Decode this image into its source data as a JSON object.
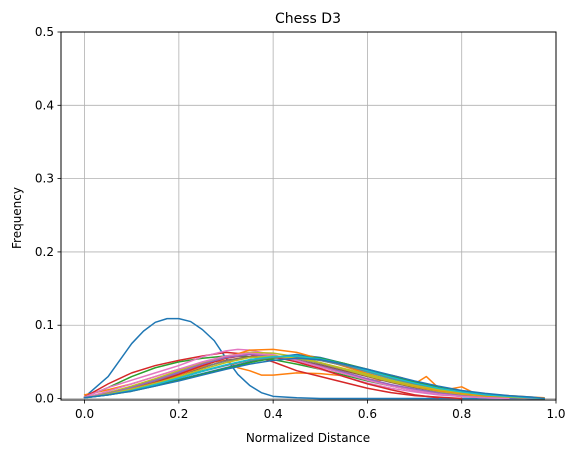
{
  "chart_data": {
    "type": "line",
    "title": "Chess D3",
    "xlabel": "Normalized Distance",
    "ylabel": "Frequency",
    "xlim": [
      -0.05,
      1.0
    ],
    "ylim": [
      -0.002,
      0.5
    ],
    "xticks": [
      0.0,
      0.2,
      0.4,
      0.6,
      0.8,
      1.0
    ],
    "xtick_labels": [
      "0.0",
      "0.2",
      "0.4",
      "0.6",
      "0.8",
      "1.0"
    ],
    "yticks": [
      0.0,
      0.1,
      0.2,
      0.3,
      0.4,
      0.5
    ],
    "ytick_labels": [
      "0.0",
      "0.1",
      "0.2",
      "0.3",
      "0.4",
      "0.5"
    ],
    "grid": true,
    "legend": "none",
    "series": [
      {
        "color": "#1f77b4",
        "x": [
          0.0,
          0.05,
          0.1,
          0.125,
          0.15,
          0.175,
          0.2,
          0.225,
          0.25,
          0.275,
          0.3,
          0.325,
          0.35,
          0.375,
          0.4,
          0.45,
          0.5,
          0.6,
          0.7,
          0.8,
          0.9,
          0.975
        ],
        "y": [
          0.002,
          0.03,
          0.075,
          0.092,
          0.104,
          0.109,
          0.109,
          0.105,
          0.094,
          0.079,
          0.055,
          0.033,
          0.018,
          0.008,
          0.003,
          0.001,
          0.0,
          0.0,
          0.0,
          0.0,
          0.0,
          0.0
        ]
      },
      {
        "color": "#ff7f0e",
        "x": [
          0.0,
          0.05,
          0.1,
          0.15,
          0.2,
          0.25,
          0.3,
          0.325,
          0.35,
          0.375,
          0.4,
          0.45,
          0.5,
          0.55,
          0.6,
          0.625,
          0.65,
          0.675,
          0.7,
          0.725,
          0.75,
          0.775,
          0.8,
          0.825,
          0.85,
          0.9,
          0.95,
          0.975
        ],
        "y": [
          0.005,
          0.012,
          0.02,
          0.03,
          0.04,
          0.048,
          0.052,
          0.042,
          0.038,
          0.032,
          0.032,
          0.035,
          0.034,
          0.031,
          0.027,
          0.024,
          0.032,
          0.028,
          0.02,
          0.03,
          0.015,
          0.013,
          0.016,
          0.008,
          0.006,
          0.004,
          0.002,
          0.001
        ]
      },
      {
        "color": "#2ca02c",
        "x": [
          0.0,
          0.05,
          0.1,
          0.15,
          0.2,
          0.25,
          0.3,
          0.35,
          0.4,
          0.45,
          0.5,
          0.55,
          0.6,
          0.65,
          0.7,
          0.75,
          0.8,
          0.85,
          0.9,
          0.95,
          0.975
        ],
        "y": [
          0.002,
          0.015,
          0.03,
          0.042,
          0.05,
          0.055,
          0.058,
          0.057,
          0.053,
          0.047,
          0.04,
          0.032,
          0.024,
          0.017,
          0.011,
          0.007,
          0.004,
          0.002,
          0.001,
          0.0,
          0.0
        ]
      },
      {
        "color": "#d62728",
        "x": [
          0.0,
          0.05,
          0.1,
          0.15,
          0.2,
          0.25,
          0.3,
          0.35,
          0.4,
          0.45,
          0.5,
          0.55,
          0.6,
          0.65,
          0.7,
          0.75,
          0.8
        ],
        "y": [
          0.002,
          0.02,
          0.035,
          0.045,
          0.052,
          0.058,
          0.063,
          0.06,
          0.05,
          0.038,
          0.03,
          0.022,
          0.014,
          0.008,
          0.004,
          0.002,
          0.0
        ]
      },
      {
        "color": "#9467bd",
        "x": [
          0.0,
          0.05,
          0.1,
          0.15,
          0.2,
          0.25,
          0.3,
          0.35,
          0.4,
          0.45,
          0.5,
          0.55,
          0.6,
          0.65,
          0.7,
          0.75,
          0.8,
          0.85,
          0.9,
          0.95,
          0.975
        ],
        "y": [
          0.001,
          0.008,
          0.016,
          0.025,
          0.035,
          0.045,
          0.055,
          0.06,
          0.058,
          0.052,
          0.044,
          0.036,
          0.027,
          0.019,
          0.013,
          0.008,
          0.005,
          0.003,
          0.001,
          0.0,
          0.0
        ]
      },
      {
        "color": "#8c564b",
        "x": [
          0.0,
          0.05,
          0.1,
          0.15,
          0.2,
          0.25,
          0.3,
          0.35,
          0.4,
          0.45,
          0.5,
          0.55,
          0.6,
          0.65,
          0.7,
          0.75,
          0.8,
          0.85,
          0.9,
          0.95,
          0.975
        ],
        "y": [
          0.001,
          0.006,
          0.013,
          0.022,
          0.032,
          0.042,
          0.052,
          0.057,
          0.056,
          0.052,
          0.046,
          0.038,
          0.03,
          0.022,
          0.015,
          0.01,
          0.006,
          0.003,
          0.002,
          0.001,
          0.0
        ]
      },
      {
        "color": "#e377c2",
        "x": [
          0.0,
          0.05,
          0.1,
          0.15,
          0.2,
          0.25,
          0.3,
          0.325,
          0.35,
          0.4,
          0.45,
          0.5,
          0.55,
          0.6,
          0.65,
          0.7,
          0.75,
          0.8,
          0.85,
          0.9
        ],
        "y": [
          0.002,
          0.015,
          0.025,
          0.035,
          0.045,
          0.057,
          0.065,
          0.067,
          0.066,
          0.06,
          0.05,
          0.04,
          0.03,
          0.021,
          0.014,
          0.009,
          0.005,
          0.003,
          0.001,
          0.0
        ]
      },
      {
        "color": "#7f7f7f",
        "x": [
          0.0,
          0.05,
          0.1,
          0.15,
          0.2,
          0.25,
          0.3,
          0.35,
          0.4,
          0.45,
          0.5,
          0.55,
          0.6,
          0.65,
          0.7,
          0.75,
          0.8,
          0.85,
          0.9,
          0.95,
          0.975
        ],
        "y": [
          0.001,
          0.007,
          0.015,
          0.024,
          0.033,
          0.043,
          0.051,
          0.056,
          0.057,
          0.054,
          0.048,
          0.04,
          0.032,
          0.024,
          0.017,
          0.011,
          0.007,
          0.004,
          0.002,
          0.001,
          0.0
        ]
      },
      {
        "color": "#bcbd22",
        "x": [
          0.0,
          0.05,
          0.1,
          0.15,
          0.2,
          0.25,
          0.3,
          0.35,
          0.4,
          0.45,
          0.5,
          0.55,
          0.6,
          0.65,
          0.7,
          0.75,
          0.8,
          0.85,
          0.9,
          0.95,
          0.975
        ],
        "y": [
          0.001,
          0.008,
          0.017,
          0.027,
          0.038,
          0.049,
          0.058,
          0.063,
          0.062,
          0.057,
          0.049,
          0.04,
          0.031,
          0.023,
          0.016,
          0.01,
          0.006,
          0.003,
          0.002,
          0.001,
          0.0
        ]
      },
      {
        "color": "#17becf",
        "x": [
          0.0,
          0.05,
          0.1,
          0.15,
          0.2,
          0.25,
          0.3,
          0.35,
          0.4,
          0.45,
          0.5,
          0.55,
          0.6,
          0.65,
          0.7,
          0.75,
          0.8,
          0.85,
          0.9,
          0.95,
          0.975
        ],
        "y": [
          0.001,
          0.006,
          0.012,
          0.02,
          0.029,
          0.038,
          0.046,
          0.053,
          0.057,
          0.057,
          0.052,
          0.045,
          0.036,
          0.027,
          0.019,
          0.013,
          0.008,
          0.005,
          0.003,
          0.001,
          0.0
        ]
      },
      {
        "color": "#1f77b4",
        "x": [
          0.0,
          0.05,
          0.1,
          0.15,
          0.2,
          0.25,
          0.3,
          0.35,
          0.4,
          0.45,
          0.5,
          0.55,
          0.6,
          0.65,
          0.7,
          0.75,
          0.8,
          0.85,
          0.9,
          0.95,
          0.975
        ],
        "y": [
          0.001,
          0.005,
          0.011,
          0.018,
          0.026,
          0.034,
          0.042,
          0.05,
          0.056,
          0.06,
          0.056,
          0.048,
          0.039,
          0.03,
          0.022,
          0.015,
          0.009,
          0.006,
          0.003,
          0.001,
          0.0
        ]
      },
      {
        "color": "#ff7f0e",
        "x": [
          0.0,
          0.05,
          0.1,
          0.15,
          0.2,
          0.25,
          0.3,
          0.35,
          0.4,
          0.45,
          0.5,
          0.55,
          0.6,
          0.65,
          0.7,
          0.75,
          0.8,
          0.85,
          0.9,
          0.95,
          0.975
        ],
        "y": [
          0.001,
          0.006,
          0.013,
          0.022,
          0.032,
          0.044,
          0.056,
          0.066,
          0.067,
          0.063,
          0.054,
          0.044,
          0.034,
          0.025,
          0.017,
          0.011,
          0.007,
          0.004,
          0.002,
          0.001,
          0.0
        ]
      },
      {
        "color": "#2ca02c",
        "x": [
          0.0,
          0.05,
          0.1,
          0.15,
          0.2,
          0.25,
          0.3,
          0.35,
          0.4,
          0.45,
          0.5,
          0.55,
          0.6,
          0.65,
          0.7,
          0.75,
          0.8,
          0.85,
          0.9,
          0.95,
          0.975
        ],
        "y": [
          0.001,
          0.005,
          0.01,
          0.017,
          0.025,
          0.033,
          0.041,
          0.049,
          0.055,
          0.058,
          0.055,
          0.048,
          0.04,
          0.031,
          0.023,
          0.016,
          0.01,
          0.006,
          0.003,
          0.001,
          0.0
        ]
      },
      {
        "color": "#d62728",
        "x": [
          0.0,
          0.05,
          0.1,
          0.15,
          0.2,
          0.25,
          0.3,
          0.35,
          0.4,
          0.45,
          0.5,
          0.55,
          0.6,
          0.65,
          0.7,
          0.75
        ],
        "y": [
          0.001,
          0.006,
          0.013,
          0.022,
          0.033,
          0.045,
          0.055,
          0.06,
          0.057,
          0.05,
          0.041,
          0.03,
          0.02,
          0.012,
          0.005,
          0.001
        ]
      },
      {
        "color": "#9467bd",
        "x": [
          0.0,
          0.05,
          0.1,
          0.15,
          0.2,
          0.25,
          0.3,
          0.35,
          0.4,
          0.45,
          0.5,
          0.55,
          0.6,
          0.65,
          0.7,
          0.75,
          0.8,
          0.85,
          0.9
        ],
        "y": [
          0.001,
          0.007,
          0.015,
          0.025,
          0.036,
          0.047,
          0.056,
          0.06,
          0.058,
          0.052,
          0.044,
          0.035,
          0.026,
          0.018,
          0.011,
          0.006,
          0.003,
          0.001,
          0.0
        ]
      },
      {
        "color": "#e377c2",
        "x": [
          0.0,
          0.05,
          0.1,
          0.15,
          0.2,
          0.25,
          0.3,
          0.35,
          0.4,
          0.45,
          0.5,
          0.55,
          0.6,
          0.65,
          0.7,
          0.75,
          0.8,
          0.85,
          0.9
        ],
        "y": [
          0.001,
          0.01,
          0.02,
          0.03,
          0.04,
          0.05,
          0.058,
          0.062,
          0.059,
          0.052,
          0.043,
          0.034,
          0.025,
          0.017,
          0.011,
          0.006,
          0.003,
          0.001,
          0.0
        ]
      },
      {
        "color": "#7f7f7f",
        "x": [
          0.0,
          0.05,
          0.1,
          0.15,
          0.2,
          0.25,
          0.3,
          0.35,
          0.4,
          0.45,
          0.5,
          0.55,
          0.6,
          0.65,
          0.7,
          0.75,
          0.8,
          0.85,
          0.9,
          0.95,
          0.975
        ],
        "y": [
          0.001,
          0.006,
          0.012,
          0.02,
          0.028,
          0.037,
          0.045,
          0.052,
          0.056,
          0.056,
          0.052,
          0.045,
          0.037,
          0.028,
          0.02,
          0.014,
          0.009,
          0.005,
          0.003,
          0.001,
          0.0
        ]
      },
      {
        "color": "#bcbd22",
        "x": [
          0.0,
          0.05,
          0.1,
          0.15,
          0.2,
          0.25,
          0.3,
          0.35,
          0.4,
          0.45,
          0.5,
          0.55,
          0.6,
          0.65,
          0.7,
          0.75,
          0.8,
          0.85,
          0.9,
          0.95,
          0.975
        ],
        "y": [
          0.001,
          0.006,
          0.013,
          0.021,
          0.03,
          0.04,
          0.049,
          0.056,
          0.058,
          0.055,
          0.049,
          0.041,
          0.033,
          0.025,
          0.018,
          0.012,
          0.008,
          0.005,
          0.002,
          0.001,
          0.0
        ]
      },
      {
        "color": "#17becf",
        "x": [
          0.0,
          0.05,
          0.1,
          0.15,
          0.2,
          0.25,
          0.3,
          0.35,
          0.4,
          0.45,
          0.5,
          0.55,
          0.6,
          0.65,
          0.7,
          0.75,
          0.8,
          0.85,
          0.9,
          0.95,
          0.975
        ],
        "y": [
          0.001,
          0.005,
          0.011,
          0.019,
          0.028,
          0.037,
          0.046,
          0.053,
          0.057,
          0.058,
          0.054,
          0.047,
          0.038,
          0.029,
          0.021,
          0.014,
          0.009,
          0.005,
          0.003,
          0.001,
          0.0
        ]
      },
      {
        "color": "#1f77b4",
        "x": [
          0.0,
          0.05,
          0.1,
          0.15,
          0.2,
          0.25,
          0.3,
          0.35,
          0.4,
          0.45,
          0.5,
          0.55,
          0.6,
          0.65,
          0.7,
          0.75,
          0.8,
          0.85,
          0.9,
          0.95,
          0.975
        ],
        "y": [
          0.001,
          0.005,
          0.01,
          0.017,
          0.024,
          0.032,
          0.04,
          0.047,
          0.052,
          0.055,
          0.053,
          0.047,
          0.04,
          0.032,
          0.024,
          0.017,
          0.011,
          0.007,
          0.004,
          0.002,
          0.0
        ]
      }
    ]
  }
}
